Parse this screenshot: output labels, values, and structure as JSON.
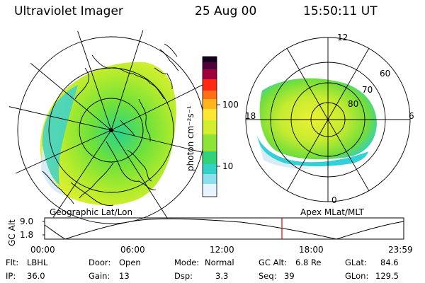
{
  "header": {
    "instrument": "Ultraviolet Imager",
    "date": "25 Aug 00",
    "time": "15:50:11 UT"
  },
  "colorbar": {
    "unit_label": "photon cm⁻²s⁻¹",
    "ticks": [
      "100",
      "10"
    ],
    "colors": [
      "#e6f4ff",
      "#32d2e6",
      "#1ec878",
      "#78e632",
      "#e6f032",
      "#ffb41e",
      "#ff3c1e",
      "#c8003c",
      "#50003c",
      "#14001e"
    ]
  },
  "left_panel": {
    "caption": "Geographic Lat/Lon"
  },
  "right_panel": {
    "caption": "Apex MLat/MLT",
    "mlt_labels": [
      "12",
      "18",
      "6",
      "0"
    ],
    "lat_labels": [
      "60",
      "70",
      "80"
    ]
  },
  "altitude_plot": {
    "y_label": "GC Alt",
    "y_ticks": [
      "9.0",
      "1.8"
    ],
    "x_ticks": [
      "00:00",
      "06:00",
      "12:00",
      "18:00",
      "23:59"
    ],
    "marker_time": "15:50",
    "marker_color": "#e00000"
  },
  "status": {
    "flt_label": "Flt:",
    "flt_value": "LBHL",
    "ip_label": "IP:",
    "ip_value": "36.0",
    "door_label": "Door:",
    "door_value": "Open",
    "gain_label": "Gain:",
    "gain_value": "13",
    "mode_label": "Mode:",
    "mode_value": "Normal",
    "dsp_label": "Dsp:",
    "dsp_value": "3.3",
    "gcalt_label": "GC Alt:",
    "gcalt_value": "6.8 Re",
    "seq_label": "Seq:",
    "seq_value": "39",
    "glat_label": "GLat:",
    "glat_value": "84.6",
    "glon_label": "GLon:",
    "glon_value": "129.5"
  }
}
